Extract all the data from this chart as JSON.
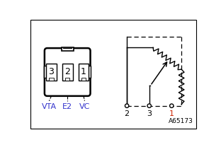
{
  "bg": "#ffffff",
  "black": "#000000",
  "blue": "#3333cc",
  "red": "#cc2200",
  "gray": "#888888",
  "connector_nums": [
    "3",
    "2",
    "1"
  ],
  "connector_labels": [
    "VTA",
    "E2",
    "VC"
  ],
  "circuit_terms": [
    "2",
    "3",
    "1"
  ],
  "ref": "A65173",
  "figsize": [
    3.12,
    2.08
  ],
  "dpi": 100
}
